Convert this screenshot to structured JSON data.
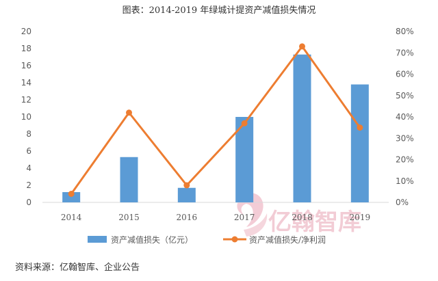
{
  "title": "图表：2014-2019 年绿城计提资产减值损失情况",
  "source": "资料来源：亿翰智库、企业公告",
  "watermark_text": "亿翰智库",
  "colors": {
    "bar": "#5b9bd5",
    "line": "#ed7d31",
    "axis": "#d9d9d9"
  },
  "chart_data": {
    "type": "bar",
    "categories": [
      "2014",
      "2015",
      "2016",
      "2017",
      "2018",
      "2019"
    ],
    "series": [
      {
        "name": "资产减值损失（亿元）",
        "type": "bar",
        "axis": "left",
        "values": [
          1.2,
          5.3,
          1.7,
          10.0,
          17.3,
          13.8
        ]
      },
      {
        "name": "资产减值损失/净利润",
        "type": "line",
        "axis": "right",
        "values": [
          4,
          42,
          8,
          37,
          73,
          35
        ]
      }
    ],
    "ylim_left": [
      0,
      20
    ],
    "yticks_left": [
      "0",
      "2",
      "4",
      "6",
      "8",
      "10",
      "12",
      "14",
      "16",
      "18",
      "20"
    ],
    "ylim_right": [
      0,
      80
    ],
    "yticks_right": [
      "0%",
      "10%",
      "20%",
      "30%",
      "40%",
      "50%",
      "60%",
      "70%",
      "80%"
    ],
    "grid": false,
    "legend": "bottom"
  }
}
